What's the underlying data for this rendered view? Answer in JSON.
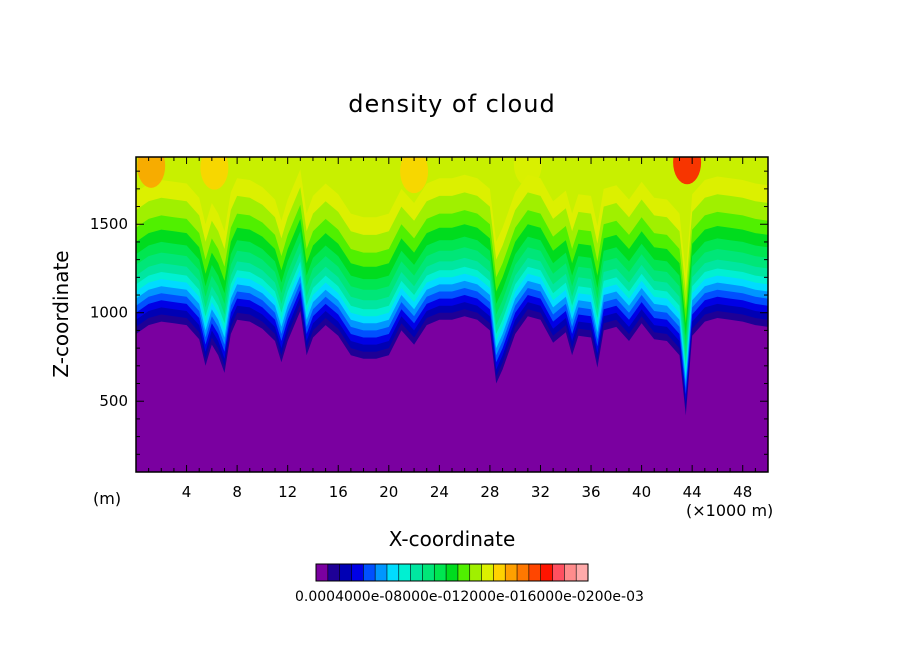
{
  "chart_data": {
    "type": "heatmap",
    "title": "density of cloud",
    "xlabel": "X-coordinate",
    "ylabel": "Z-coordinate",
    "x_unit_left": "(m)",
    "x_unit_right": "(×1000 m)",
    "x_ticks": [
      "4",
      "8",
      "12",
      "16",
      "20",
      "24",
      "28",
      "32",
      "36",
      "40",
      "44",
      "48"
    ],
    "y_ticks": [
      "500",
      "1000",
      "1500"
    ],
    "xlim": [
      0,
      50
    ],
    "ylim": [
      100,
      1880
    ],
    "colorbar": {
      "label_text": "0.0004000e-08000e-012000e-016000e-0200e-03",
      "colors": [
        "#7a00a0",
        "#1e0096",
        "#0000b4",
        "#0000e6",
        "#0050ff",
        "#0096ff",
        "#00dcff",
        "#00f0d2",
        "#00e6a0",
        "#00e678",
        "#00e650",
        "#00dc1e",
        "#50f000",
        "#a0f000",
        "#dcf000",
        "#ffd200",
        "#ffa000",
        "#ff7800",
        "#ff4600",
        "#ff1400",
        "#ff5060",
        "#ff8c8c",
        "#ffaaaa"
      ]
    },
    "surface_boundary_z": [
      [
        0,
        880
      ],
      [
        1,
        930
      ],
      [
        2,
        950
      ],
      [
        3,
        940
      ],
      [
        4,
        930
      ],
      [
        5,
        850
      ],
      [
        5.5,
        700
      ],
      [
        6,
        820
      ],
      [
        6.5,
        760
      ],
      [
        7,
        660
      ],
      [
        7.5,
        880
      ],
      [
        8,
        960
      ],
      [
        9,
        950
      ],
      [
        10,
        910
      ],
      [
        11,
        840
      ],
      [
        11.5,
        720
      ],
      [
        12,
        840
      ],
      [
        13,
        1010
      ],
      [
        13.5,
        760
      ],
      [
        14,
        860
      ],
      [
        15,
        930
      ],
      [
        16,
        870
      ],
      [
        17,
        760
      ],
      [
        18,
        740
      ],
      [
        19,
        740
      ],
      [
        20,
        760
      ],
      [
        21,
        900
      ],
      [
        22,
        820
      ],
      [
        23,
        930
      ],
      [
        24,
        960
      ],
      [
        25,
        960
      ],
      [
        26,
        980
      ],
      [
        27,
        960
      ],
      [
        28,
        900
      ],
      [
        28.5,
        600
      ],
      [
        29,
        680
      ],
      [
        30,
        880
      ],
      [
        31,
        980
      ],
      [
        32,
        960
      ],
      [
        33,
        830
      ],
      [
        34,
        890
      ],
      [
        34.5,
        760
      ],
      [
        35,
        870
      ],
      [
        36,
        860
      ],
      [
        36.5,
        690
      ],
      [
        37,
        900
      ],
      [
        38,
        920
      ],
      [
        39,
        840
      ],
      [
        40,
        940
      ],
      [
        41,
        850
      ],
      [
        42,
        840
      ],
      [
        43,
        760
      ],
      [
        43.5,
        420
      ],
      [
        44,
        870
      ],
      [
        45,
        950
      ],
      [
        46,
        970
      ],
      [
        47,
        960
      ],
      [
        48,
        950
      ],
      [
        49,
        930
      ],
      [
        50,
        920
      ]
    ],
    "bands": [
      {
        "offset": 40,
        "color": "#1e0096"
      },
      {
        "offset": 80,
        "color": "#0000b4"
      },
      {
        "offset": 120,
        "color": "#0000e6"
      },
      {
        "offset": 160,
        "color": "#0050ff"
      },
      {
        "offset": 200,
        "color": "#0096ff"
      },
      {
        "offset": 240,
        "color": "#00dcff"
      },
      {
        "offset": 280,
        "color": "#00f0d2"
      },
      {
        "offset": 330,
        "color": "#00e6a0"
      },
      {
        "offset": 390,
        "color": "#00e678"
      },
      {
        "offset": 450,
        "color": "#00e650"
      },
      {
        "offset": 520,
        "color": "#00dc1e"
      },
      {
        "offset": 600,
        "color": "#50f000"
      },
      {
        "offset": 700,
        "color": "#a0f000"
      },
      {
        "offset": 800,
        "color": "#dcf000"
      }
    ],
    "hotspots": [
      {
        "x": 1.2,
        "z": 1830,
        "color": "#ffa000"
      },
      {
        "x": 6.2,
        "z": 1820,
        "color": "#ffd200"
      },
      {
        "x": 22,
        "z": 1800,
        "color": "#ffd200"
      },
      {
        "x": 43.6,
        "z": 1850,
        "color": "#ff1400"
      },
      {
        "x": 31,
        "z": 1840,
        "color": "#dcf000"
      }
    ],
    "plot_bg": "#7a00a0"
  }
}
